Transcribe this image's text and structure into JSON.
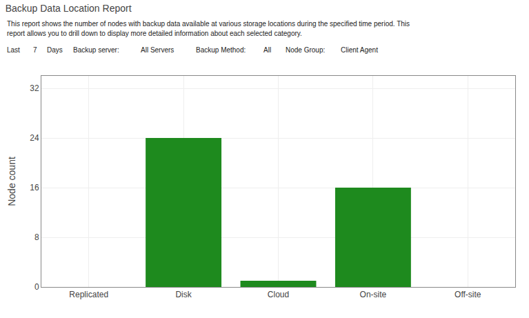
{
  "chart_data": {
    "type": "bar",
    "title": "Backup Data Location Report",
    "subtitle": [
      "This report shows the number of nodes with backup data available at various storage locations during the specified time period. This",
      "report allows you to drill down to display more detailed information about each selected category."
    ],
    "annotations": [
      "Last",
      "7",
      "Days",
      "Backup server:",
      "All Servers",
      "Backup Method:",
      "All",
      "Node Group:",
      "Client Agent"
    ],
    "categories": [
      "Replicated",
      "Disk",
      "Cloud",
      "On-site",
      "Off-site"
    ],
    "values": [
      0,
      24,
      1,
      16,
      0
    ],
    "color": "#1e8a1e",
    "ylabel": "Node count",
    "ylim": [
      0,
      34
    ],
    "yticks": [
      0,
      8,
      16,
      24,
      32
    ],
    "grid": true
  }
}
